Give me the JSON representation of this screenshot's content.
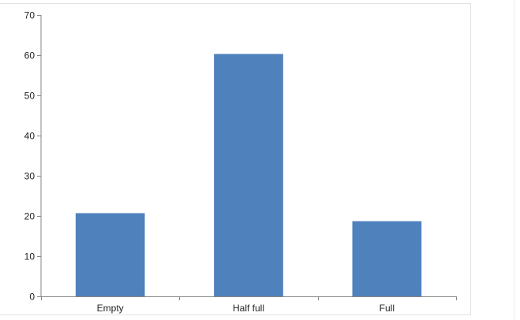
{
  "chart_data": {
    "type": "bar",
    "categories": [
      "Empty",
      "Half full",
      "Full"
    ],
    "values": [
      20.7,
      60.3,
      18.7
    ],
    "ylim": [
      0,
      70
    ],
    "yticks": [
      0,
      10,
      20,
      30,
      40,
      50,
      60,
      70
    ],
    "grid": false,
    "legend": "none",
    "bar_color": "#4f81bd"
  }
}
